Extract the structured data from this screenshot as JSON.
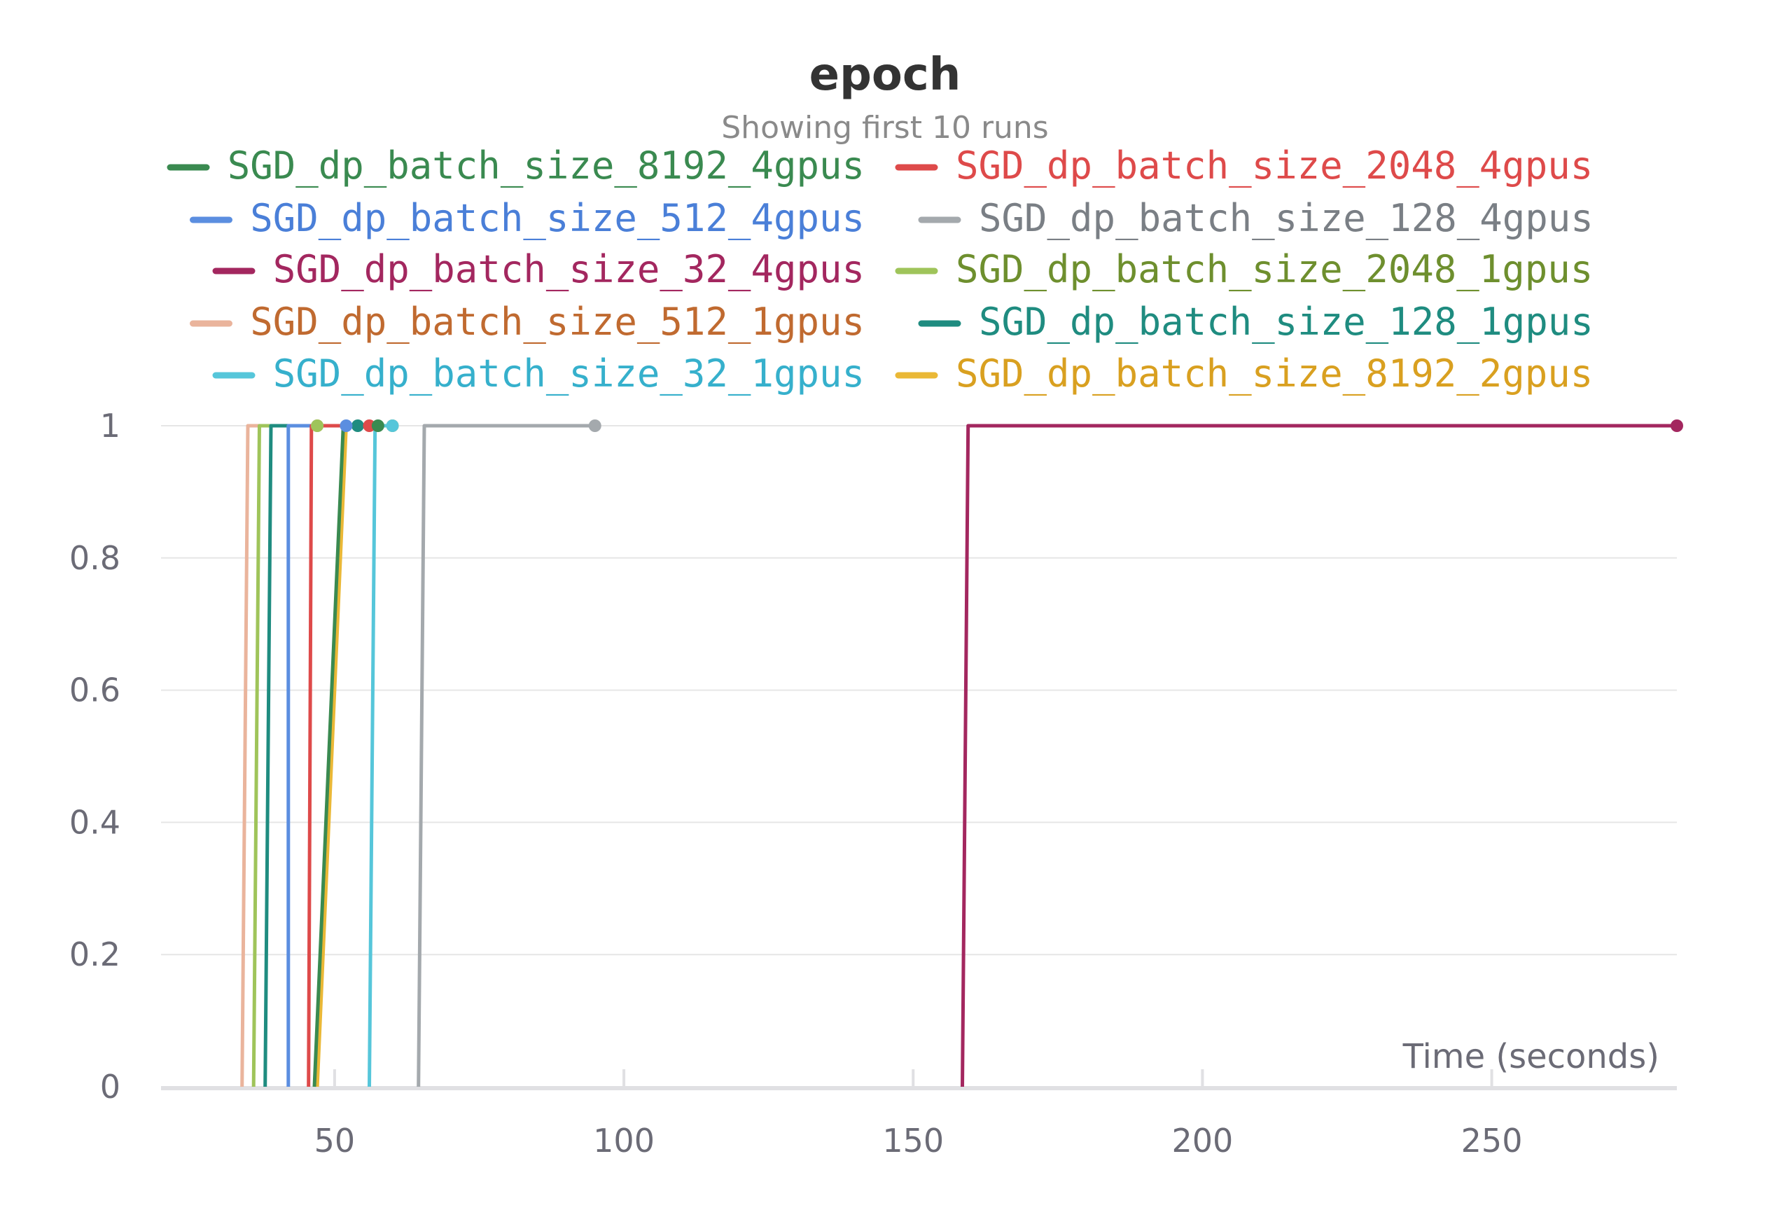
{
  "chart_data": {
    "type": "line",
    "title": "epoch",
    "subtitle": "Showing first 10 runs",
    "xlabel": "Time (seconds)",
    "ylabel": "",
    "xlim": [
      20,
      282
    ],
    "ylim": [
      0,
      1
    ],
    "x_ticks": [
      50,
      100,
      150,
      200,
      250
    ],
    "y_ticks": [
      0,
      0.2,
      0.4,
      0.6,
      0.8,
      1
    ],
    "y_tick_labels": [
      "0",
      "0.2",
      "0.4",
      "0.6",
      "0.8",
      "1"
    ],
    "grid": true,
    "legend_position": "top",
    "series": [
      {
        "name": "SGD_dp_batch_size_8192_4gpus",
        "color": "#3a8a50",
        "text_color": "#3a8a50",
        "points": [
          [
            46.5,
            0
          ],
          [
            51.5,
            1
          ],
          [
            57.5,
            1
          ]
        ]
      },
      {
        "name": "SGD_dp_batch_size_2048_4gpus",
        "color": "#de4a4a",
        "text_color": "#de4a4a",
        "points": [
          [
            45.5,
            0
          ],
          [
            46,
            1
          ],
          [
            56,
            1
          ]
        ]
      },
      {
        "name": "SGD_dp_batch_size_512_4gpus",
        "color": "#5b8ee0",
        "text_color": "#4a7fd8",
        "points": [
          [
            42,
            0
          ],
          [
            42,
            1
          ],
          [
            52,
            1
          ]
        ]
      },
      {
        "name": "SGD_dp_batch_size_128_4gpus",
        "color": "#a4a9ad",
        "text_color": "#7a7f85",
        "points": [
          [
            64.5,
            0
          ],
          [
            65.5,
            1
          ],
          [
            95,
            1
          ]
        ]
      },
      {
        "name": "SGD_dp_batch_size_32_4gpus",
        "color": "#a3275f",
        "text_color": "#a3275f",
        "points": [
          [
            158.5,
            0
          ],
          [
            159.5,
            1
          ],
          [
            282,
            1
          ]
        ]
      },
      {
        "name": "SGD_dp_batch_size_2048_1gpus",
        "color": "#9fc45a",
        "text_color": "#6e8f2e",
        "points": [
          [
            36,
            0
          ],
          [
            37,
            1
          ],
          [
            47,
            1
          ]
        ]
      },
      {
        "name": "SGD_dp_batch_size_512_1gpus",
        "color": "#eab49c",
        "text_color": "#c06a30",
        "points": [
          [
            34,
            0
          ],
          [
            35,
            1
          ],
          [
            47,
            1
          ]
        ]
      },
      {
        "name": "SGD_dp_batch_size_128_1gpus",
        "color": "#1f8c80",
        "text_color": "#1f8c80",
        "points": [
          [
            38,
            0
          ],
          [
            39,
            1
          ],
          [
            54,
            1
          ]
        ]
      },
      {
        "name": "SGD_dp_batch_size_32_1gpus",
        "color": "#56c6da",
        "text_color": "#36b0cc",
        "points": [
          [
            56,
            0
          ],
          [
            57,
            1
          ],
          [
            60,
            1
          ]
        ]
      },
      {
        "name": "SGD_dp_batch_size_8192_2gpus",
        "color": "#eab836",
        "text_color": "#d9a020",
        "points": [
          [
            47,
            0
          ],
          [
            52,
            1
          ],
          [
            60,
            1
          ]
        ]
      }
    ]
  }
}
